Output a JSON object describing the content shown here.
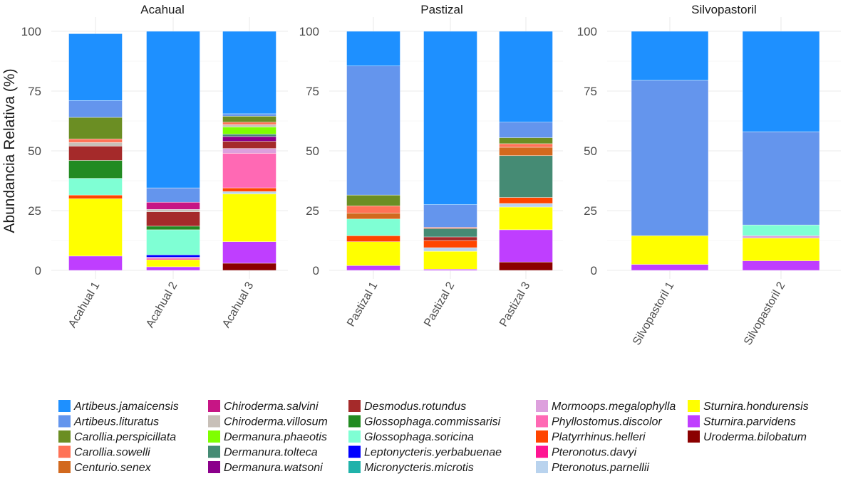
{
  "chart_data": {
    "type": "bar",
    "stacked": true,
    "ylabel": "Abundancia Relativa (%)",
    "xlabel": "",
    "ylim": [
      0,
      100
    ],
    "yticks": [
      "0",
      "25",
      "50",
      "75",
      "100"
    ],
    "ytick_values": [
      0,
      25,
      50,
      75,
      100
    ],
    "grid": true,
    "legend_position": "bottom",
    "species": [
      {
        "name": "Artibeus.jamaicensis",
        "color": "#1E90FF"
      },
      {
        "name": "Artibeus.lituratus",
        "color": "#6495ED"
      },
      {
        "name": "Carollia.perspicillata",
        "color": "#6B8E23"
      },
      {
        "name": "Carollia.sowelli",
        "color": "#FF7256"
      },
      {
        "name": "Centurio.senex",
        "color": "#D2691E"
      },
      {
        "name": "Chiroderma.salvini",
        "color": "#C71585"
      },
      {
        "name": "Chiroderma.villosum",
        "color": "#C8C0B8"
      },
      {
        "name": "Dermanura.phaeotis",
        "color": "#7FFF00"
      },
      {
        "name": "Dermanura.tolteca",
        "color": "#458B74"
      },
      {
        "name": "Dermanura.watsoni",
        "color": "#8B008B"
      },
      {
        "name": "Desmodus.rotundus",
        "color": "#A52A2A"
      },
      {
        "name": "Glossophaga.commissarisi",
        "color": "#228B22"
      },
      {
        "name": "Glossophaga.soricina",
        "color": "#7FFFD4"
      },
      {
        "name": "Leptonycteris.yerbabuenae",
        "color": "#0000FF"
      },
      {
        "name": "Micronycteris.microtis",
        "color": "#20B2AA"
      },
      {
        "name": "Mormoops.megalophylla",
        "color": "#DDA0DD"
      },
      {
        "name": "Phyllostomus.discolor",
        "color": "#FF69B4"
      },
      {
        "name": "Platyrrhinus.helleri",
        "color": "#FF4500"
      },
      {
        "name": "Pteronotus.davyi",
        "color": "#FF1493"
      },
      {
        "name": "Pteronotus.parnellii",
        "color": "#B9D3EE"
      },
      {
        "name": "Sturnira.hondurensis",
        "color": "#FFFF00"
      },
      {
        "name": "Sturnira.parvidens",
        "color": "#BF3EFF"
      },
      {
        "name": "Uroderma.bilobatum",
        "color": "#8B0000"
      }
    ],
    "panels": [
      {
        "title": "Acahual",
        "categories": [
          "Acahual 1",
          "Acahual 2",
          "Acahual 3"
        ],
        "bars": [
          {
            "Sturnira.parvidens": 6,
            "Sturnira.hondurensis": 24,
            "Platyrrhinus.helleri": 1.5,
            "Glossophaga.soricina": 7,
            "Glossophaga.commissarisi": 7.5,
            "Desmodus.rotundus": 6,
            "Chiroderma.villosum": 1.5,
            "Carollia.sowelli": 1.5,
            "Carollia.perspicillata": 9,
            "Artibeus.lituratus": 7,
            "Artibeus.jamaicensis": 28
          },
          {
            "Sturnira.parvidens": 1.5,
            "Sturnira.hondurensis": 3,
            "Mormoops.megalophylla": 0.5,
            "Leptonycteris.yerbabuenae": 1,
            "Glossophaga.soricina": 10.5,
            "Glossophaga.commissarisi": 1.5,
            "Desmodus.rotundus": 6,
            "Pteronotus.davyi": 0.5,
            "Chiroderma.salvini": 3,
            "Chiroderma.villosum": 1,
            "Artibeus.lituratus": 6,
            "Artibeus.jamaicensis": 65.5
          },
          {
            "Uroderma.bilobatum": 3,
            "Sturnira.parvidens": 9,
            "Sturnira.hondurensis": 20,
            "Pteronotus.parnellii": 1,
            "Platyrrhinus.helleri": 1.5,
            "Phyllostomus.discolor": 14.5,
            "Mormoops.megalophylla": 2,
            "Desmodus.rotundus": 3,
            "Dermanura.watsoni": 2,
            "Dermanura.tolteca": 1,
            "Dermanura.phaeotis": 3,
            "Chiroderma.villosum": 1,
            "Carollia.sowelli": 1,
            "Carollia.perspicillata": 2.5,
            "Artibeus.lituratus": 1,
            "Artibeus.jamaicensis": 34.5
          }
        ]
      },
      {
        "title": "Pastizal",
        "categories": [
          "Pastizal 1",
          "Pastizal 2",
          "Pastizal 3"
        ],
        "bars": [
          {
            "Sturnira.parvidens": 2,
            "Sturnira.hondurensis": 10,
            "Platyrrhinus.helleri": 2.5,
            "Glossophaga.soricina": 7,
            "Centurio.senex": 2.5,
            "Carollia.sowelli": 3,
            "Carollia.perspicillata": 4.5,
            "Artibeus.lituratus": 54,
            "Artibeus.jamaicensis": 14.5
          },
          {
            "Sturnira.parvidens": 0.5,
            "Sturnira.hondurensis": 7.5,
            "Pteronotus.parnellii": 1.5,
            "Platyrrhinus.helleri": 3,
            "Carollia.sowelli": 0.5,
            "Desmodus.rotundus": 1.5,
            "Dermanura.tolteca": 3.5,
            "Artibeus.lituratus": 9.5,
            "Artibeus.jamaicensis": 72.5
          },
          {
            "Uroderma.bilobatum": 3.5,
            "Sturnira.parvidens": 13.5,
            "Sturnira.hondurensis": 9.5,
            "Pteronotus.parnellii": 1.5,
            "Platyrrhinus.helleri": 2.5,
            "Dermanura.tolteca": 17.5,
            "Centurio.senex": 3.5,
            "Carollia.sowelli": 1.5,
            "Carollia.perspicillata": 2.5,
            "Artibeus.lituratus": 6.5,
            "Artibeus.jamaicensis": 38
          }
        ]
      },
      {
        "title": "Silvopastoril",
        "categories": [
          "Silvopastoril 1",
          "Silvopastoril 2"
        ],
        "bars": [
          {
            "Sturnira.parvidens": 2.5,
            "Sturnira.hondurensis": 12,
            "Artibeus.lituratus": 65,
            "Artibeus.jamaicensis": 20.5
          },
          {
            "Sturnira.parvidens": 4,
            "Sturnira.hondurensis": 9.5,
            "Mormoops.megalophylla": 1,
            "Glossophaga.soricina": 4.5,
            "Artibeus.lituratus": 39,
            "Artibeus.jamaicensis": 42
          }
        ]
      }
    ]
  }
}
